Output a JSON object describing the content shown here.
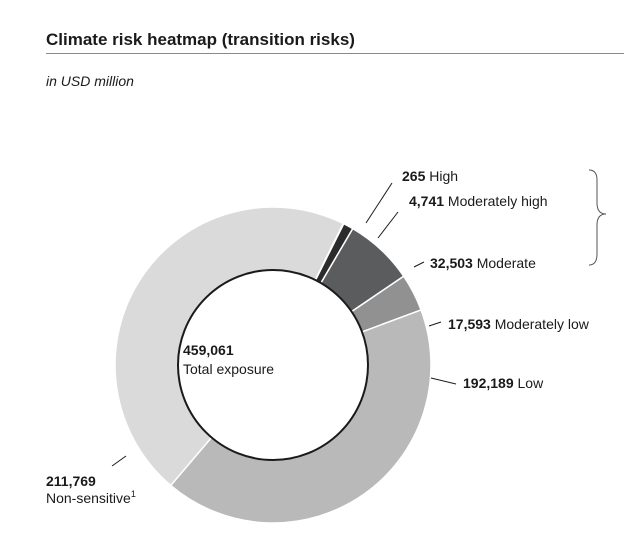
{
  "title": "Climate risk heatmap (transition risks)",
  "subtitle": "in USD million",
  "chart_data": {
    "type": "pie",
    "style": "donut",
    "total": {
      "value": "459,061",
      "label": "Total exposure"
    },
    "slices": [
      {
        "key": "high",
        "value": 265,
        "value_label": "265",
        "category": "High",
        "color": "#e60012"
      },
      {
        "key": "moderately-high",
        "value": 4741,
        "value_label": "4,741",
        "category": "Moderately high",
        "color": "#2b2b2b"
      },
      {
        "key": "moderate",
        "value": 32503,
        "value_label": "32,503",
        "category": "Moderate",
        "color": "#5a5c5e"
      },
      {
        "key": "moderately-low",
        "value": 17593,
        "value_label": "17,593",
        "category": "Moderately low",
        "color": "#919191"
      },
      {
        "key": "low",
        "value": 192189,
        "value_label": "192,189",
        "category": "Low",
        "color": "#b9b9b9"
      },
      {
        "key": "non-sensitive",
        "value": 211769,
        "value_label": "211,769",
        "category": "Non-sensitive",
        "footnote": "1",
        "color": "#dadada"
      }
    ],
    "bracket_groups": [
      "high",
      "moderately-high",
      "moderate"
    ]
  }
}
